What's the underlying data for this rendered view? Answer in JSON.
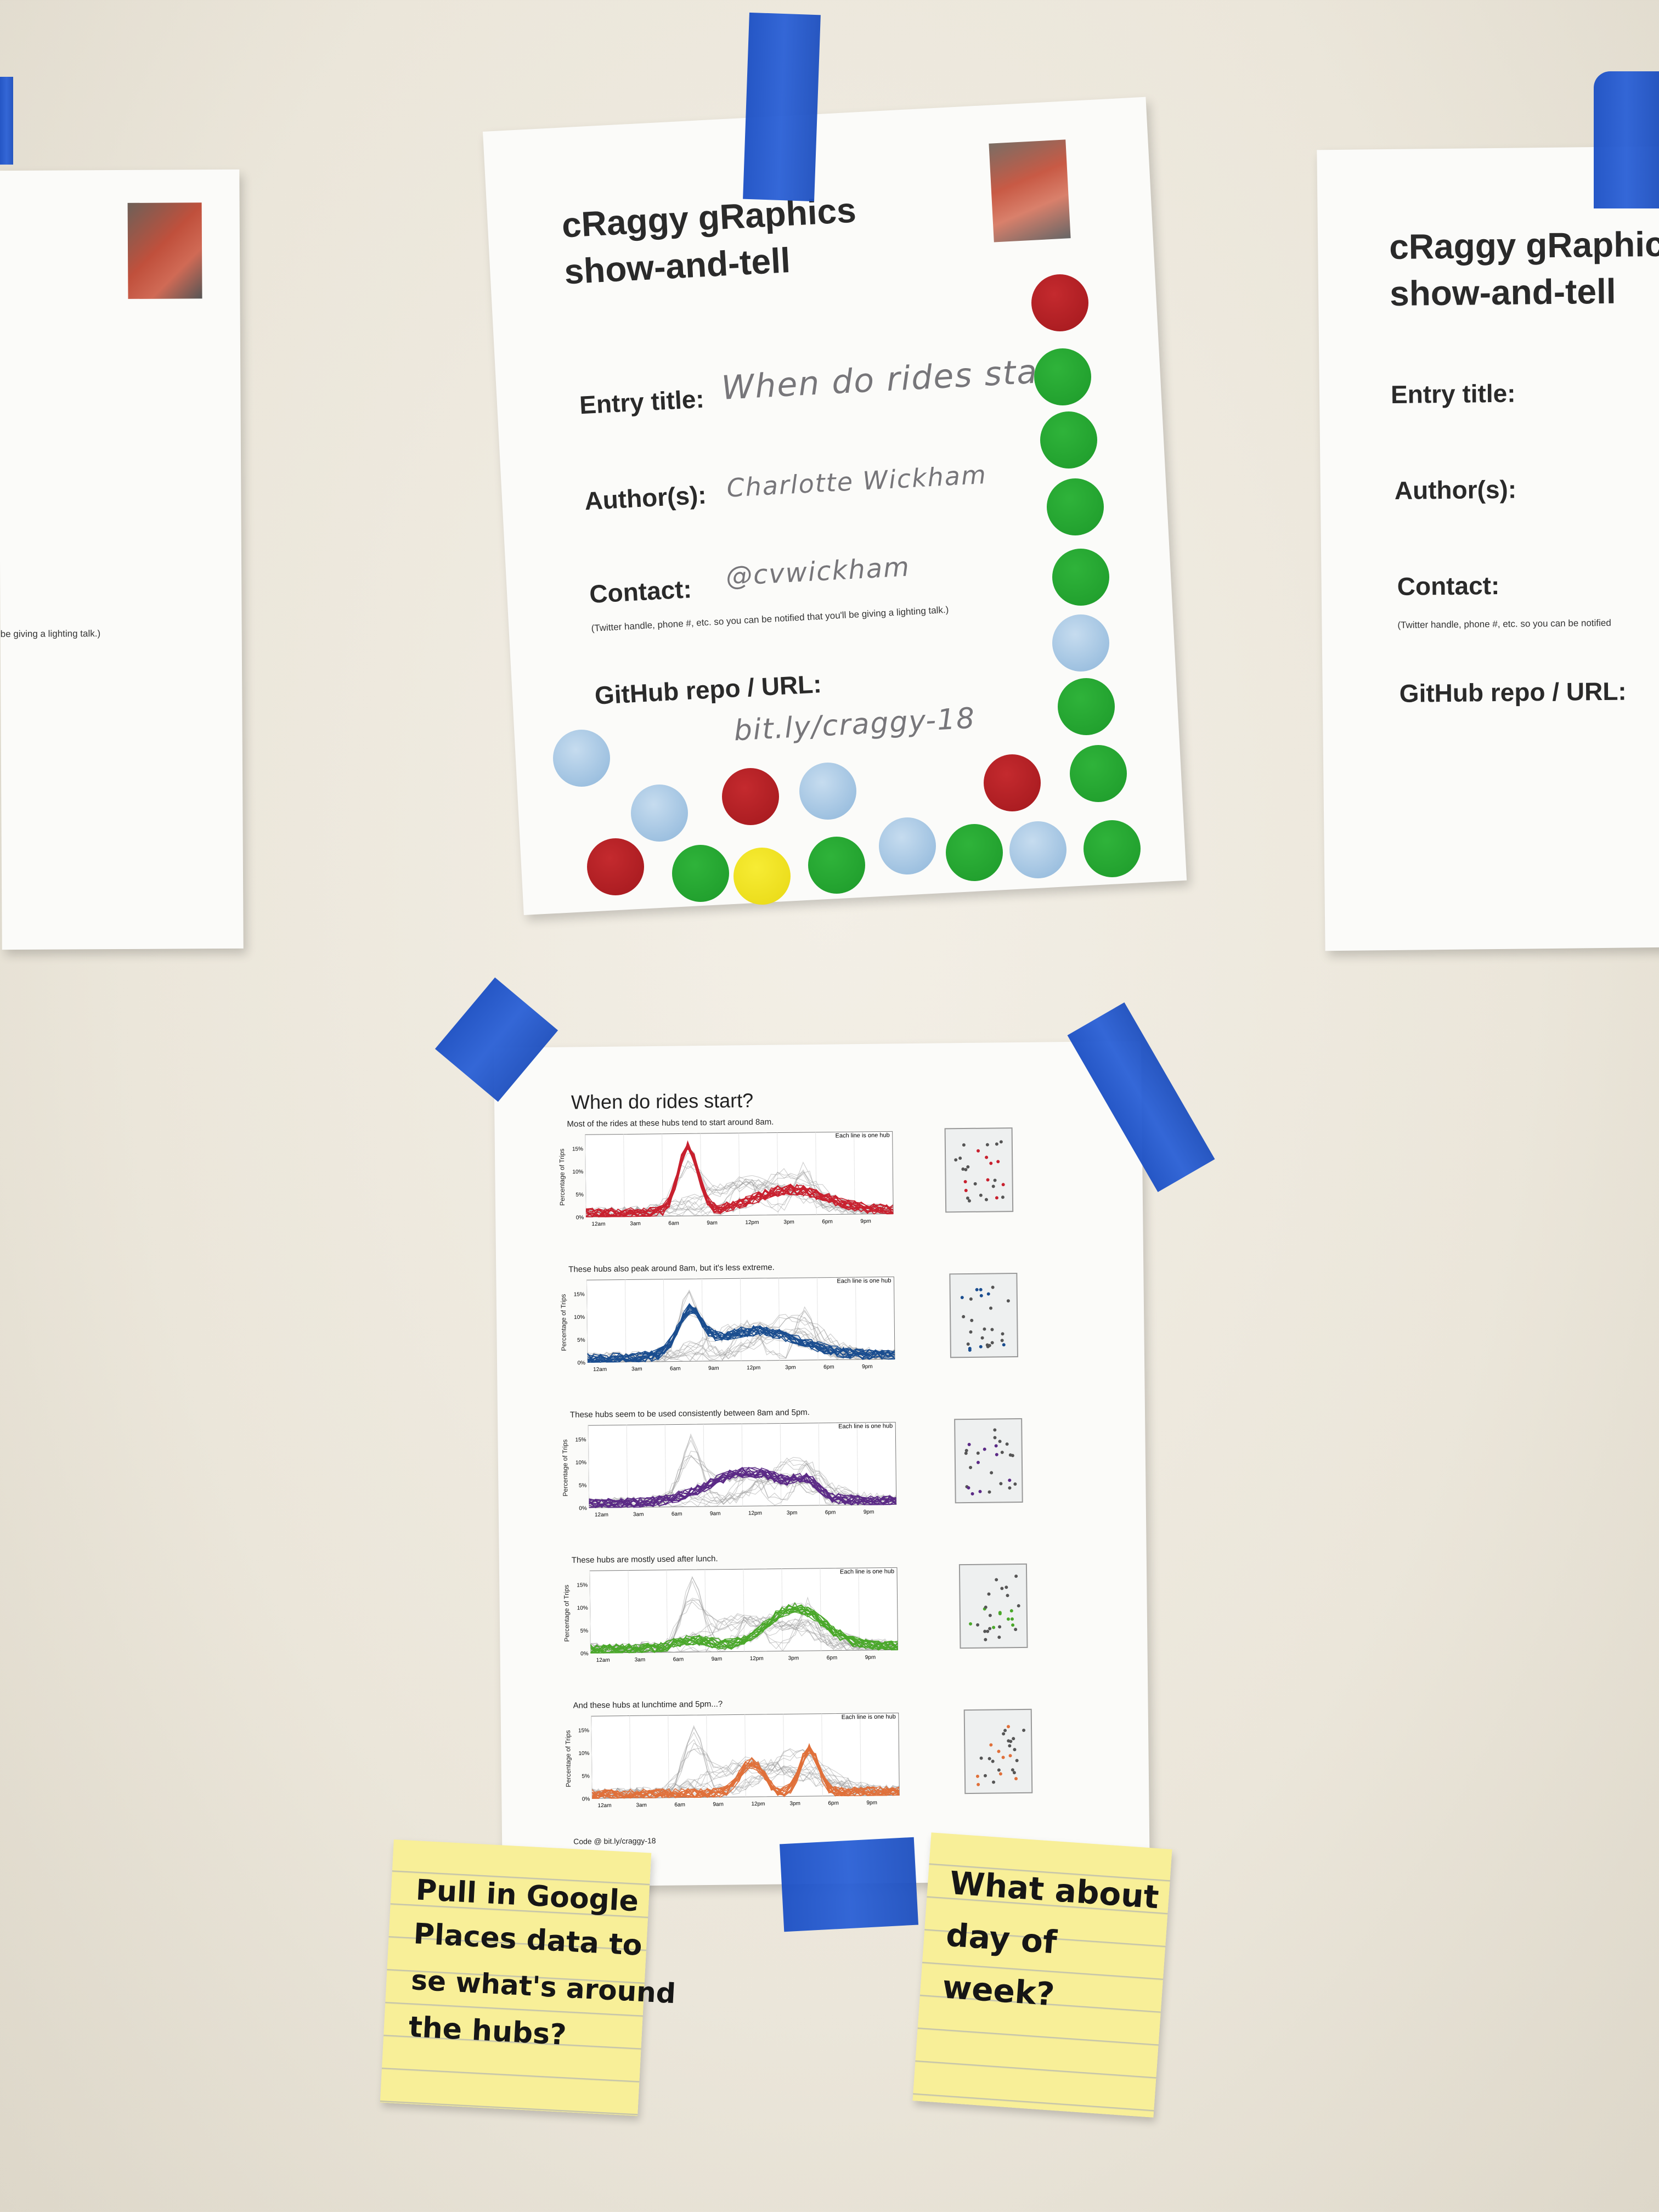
{
  "left_sheet": {
    "note_fragment": "be giving a lighting talk.)"
  },
  "main_sign": {
    "title_line1": "cRaggy gRaphics",
    "title_line2": "show-and-tell",
    "entry_label": "Entry title:",
    "entry_value": "When do rides start?",
    "author_label": "Author(s):",
    "author_value": "Charlotte Wickham",
    "contact_label": "Contact:",
    "contact_value": "@cvwickham",
    "contact_note": "(Twitter handle, phone #, etc. so you can be notified that you'll be giving a lighting talk.)",
    "github_label": "GitHub repo / URL:",
    "github_value": "bit.ly/craggy-18"
  },
  "right_sheet": {
    "title_line1": "cRaggy gRaphic",
    "title_line2": "show-and-tell",
    "entry_label": "Entry title:",
    "author_label": "Author(s):",
    "contact_label": "Contact:",
    "contact_note": "(Twitter handle, phone #, etc. so you can be notified",
    "github_label": "GitHub repo / URL:"
  },
  "poster": {
    "title": "When do rides start?",
    "footer": "Code @ bit.ly/craggy-18",
    "ylabel": "Percentage of Trips",
    "note": "Each line is one hub",
    "yticks": [
      "15%",
      "10%",
      "5%",
      "0%"
    ],
    "xticks": [
      "12am",
      "3am",
      "6am",
      "9am",
      "12pm",
      "3pm",
      "6pm",
      "9pm"
    ],
    "panels": [
      {
        "caption": "Most of the rides at these hubs tend to start around 8am.",
        "color": "#c8202e"
      },
      {
        "caption": "These hubs also peak around 8am, but it's less extreme.",
        "color": "#1a4d8f"
      },
      {
        "caption": "These hubs seem to be used consistently between 8am and 5pm.",
        "color": "#5b2a86"
      },
      {
        "caption": "These hubs are mostly used after lunch.",
        "color": "#4aa82a"
      },
      {
        "caption": "And these hubs at lunchtime and 5pm...?",
        "color": "#e0703a"
      }
    ]
  },
  "sticky_left": {
    "lines": [
      "Pull in Google",
      "Places data to",
      "se what's around",
      "the hubs?"
    ]
  },
  "sticky_right": {
    "lines": [
      "What about",
      "day of",
      "week?"
    ]
  },
  "colors": {
    "tape": "#2158cc",
    "sticky": "#f8ef98"
  }
}
